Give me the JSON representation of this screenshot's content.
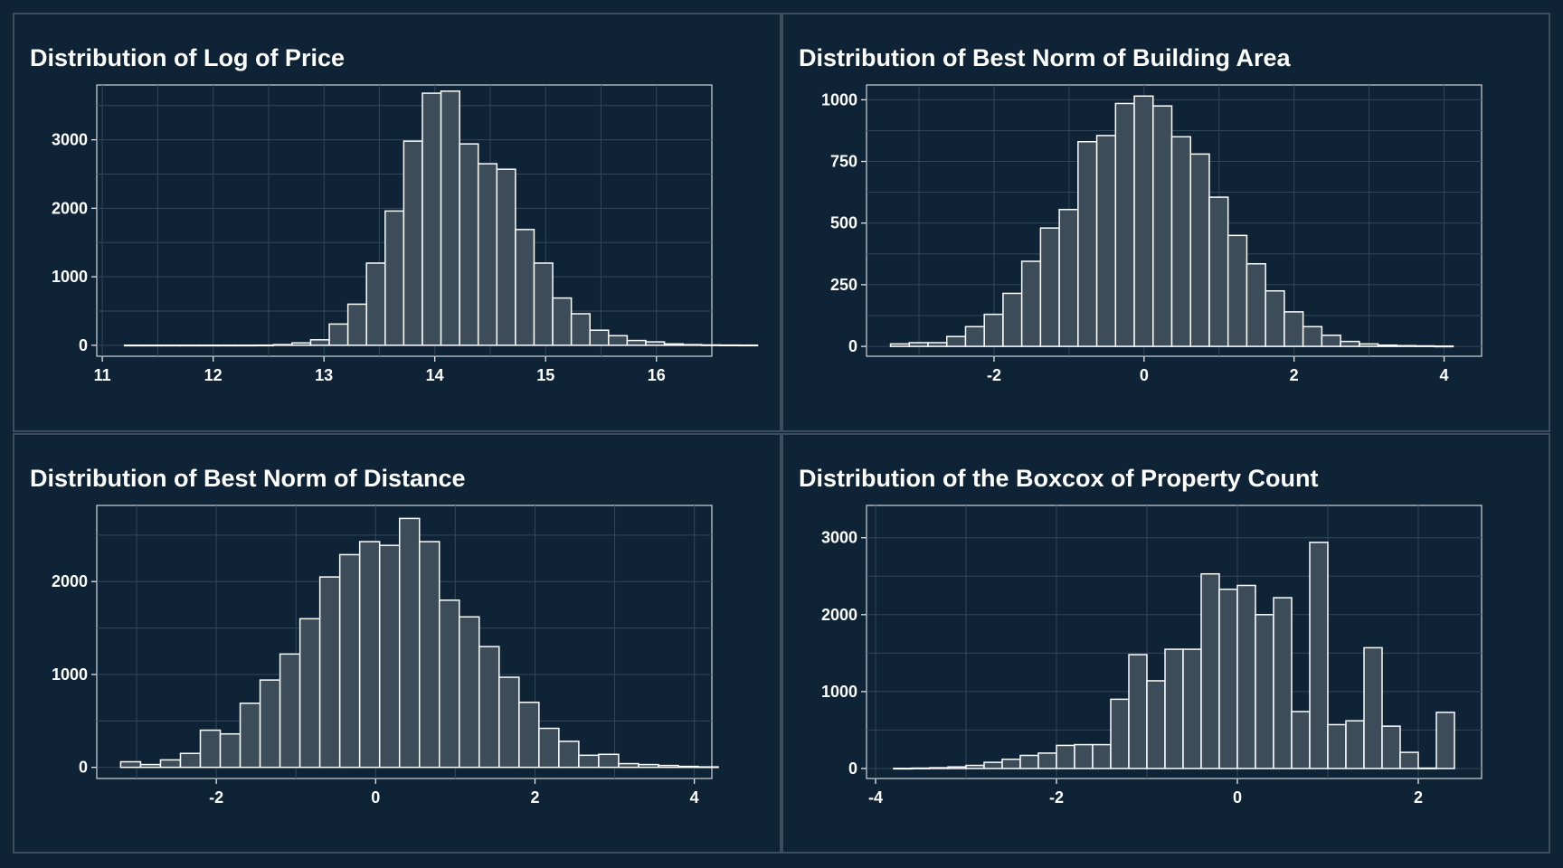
{
  "colors": {
    "background": "#0f2336",
    "panel_border": "#3b4d5e",
    "bar_fill": "#3c4c59",
    "bar_stroke": "#ffffff",
    "grid": "#33475a",
    "text": "#ffffff"
  },
  "chart_data": [
    {
      "type": "bar",
      "title": "Distribution of Log of Price",
      "xlabel": "",
      "ylabel": "",
      "grid": true,
      "xlim": [
        10.95,
        16.5
      ],
      "ylim": [
        -160,
        3800
      ],
      "xticks": [
        11,
        12,
        13,
        14,
        15,
        16
      ],
      "xtick_labels": [
        "11",
        "12",
        "13",
        "14",
        "15",
        "16"
      ],
      "yticks": [
        0,
        1000,
        2000,
        3000
      ],
      "ytick_labels": [
        "0",
        "1000",
        "2000",
        "3000"
      ],
      "bins": {
        "start": 11.2,
        "width": 0.168,
        "counts": [
          1,
          1,
          1,
          1,
          1,
          1,
          1,
          2,
          10,
          35,
          80,
          310,
          600,
          1200,
          1960,
          2980,
          3680,
          3710,
          2940,
          2650,
          2570,
          1690,
          1200,
          690,
          460,
          220,
          140,
          70,
          50,
          20,
          10,
          5,
          3,
          2
        ]
      }
    },
    {
      "type": "bar",
      "title": "Distribution of Best Norm of Building Area",
      "xlabel": "",
      "ylabel": "",
      "grid": true,
      "xlim": [
        -3.7,
        4.5
      ],
      "ylim": [
        -40,
        1060
      ],
      "xticks": [
        -2,
        0,
        2,
        4
      ],
      "xtick_labels": [
        "-2",
        "0",
        "2",
        "4"
      ],
      "yticks": [
        0,
        250,
        500,
        750,
        1000
      ],
      "ytick_labels": [
        "0",
        "250",
        "500",
        "750",
        "1000"
      ],
      "bins": {
        "start": -3.38,
        "width": 0.25,
        "counts": [
          10,
          15,
          15,
          40,
          80,
          130,
          215,
          345,
          480,
          555,
          830,
          855,
          985,
          1015,
          975,
          850,
          780,
          605,
          450,
          335,
          225,
          140,
          80,
          45,
          20,
          10,
          5,
          3,
          2,
          1
        ]
      }
    },
    {
      "type": "bar",
      "title": "Distribution of Best Norm of Distance",
      "xlabel": "",
      "ylabel": "",
      "grid": true,
      "xlim": [
        -3.5,
        4.22
      ],
      "ylim": [
        -120,
        2820
      ],
      "xticks": [
        -2,
        0,
        2,
        4
      ],
      "xtick_labels": [
        "-2",
        "0",
        "2",
        "4"
      ],
      "yticks": [
        0,
        1000,
        2000
      ],
      "ytick_labels": [
        "0",
        "1000",
        "2000"
      ],
      "bins": {
        "start": -3.2,
        "width": 0.25,
        "counts": [
          60,
          30,
          80,
          150,
          400,
          360,
          690,
          940,
          1220,
          1600,
          2050,
          2290,
          2430,
          2390,
          2680,
          2430,
          1800,
          1620,
          1300,
          970,
          700,
          420,
          280,
          130,
          140,
          40,
          30,
          20,
          10,
          5
        ]
      }
    },
    {
      "type": "bar",
      "title": "Distribution of the Boxcox of Property Count",
      "xlabel": "",
      "ylabel": "",
      "grid": true,
      "xlim": [
        -4.1,
        2.7
      ],
      "ylim": [
        -130,
        3420
      ],
      "xticks": [
        -4,
        -2,
        0,
        2
      ],
      "xtick_labels": [
        "-4",
        "-2",
        "0",
        "2"
      ],
      "yticks": [
        0,
        1000,
        2000,
        3000
      ],
      "ytick_labels": [
        "0",
        "1000",
        "2000",
        "3000"
      ],
      "bins": {
        "start": -3.8,
        "width": 0.2,
        "counts": [
          2,
          5,
          10,
          20,
          40,
          80,
          120,
          170,
          200,
          300,
          310,
          310,
          900,
          1480,
          1140,
          1550,
          1550,
          2530,
          2330,
          2380,
          2000,
          2220,
          740,
          2940,
          570,
          620,
          1570,
          550,
          210,
          5,
          730
        ]
      }
    }
  ]
}
